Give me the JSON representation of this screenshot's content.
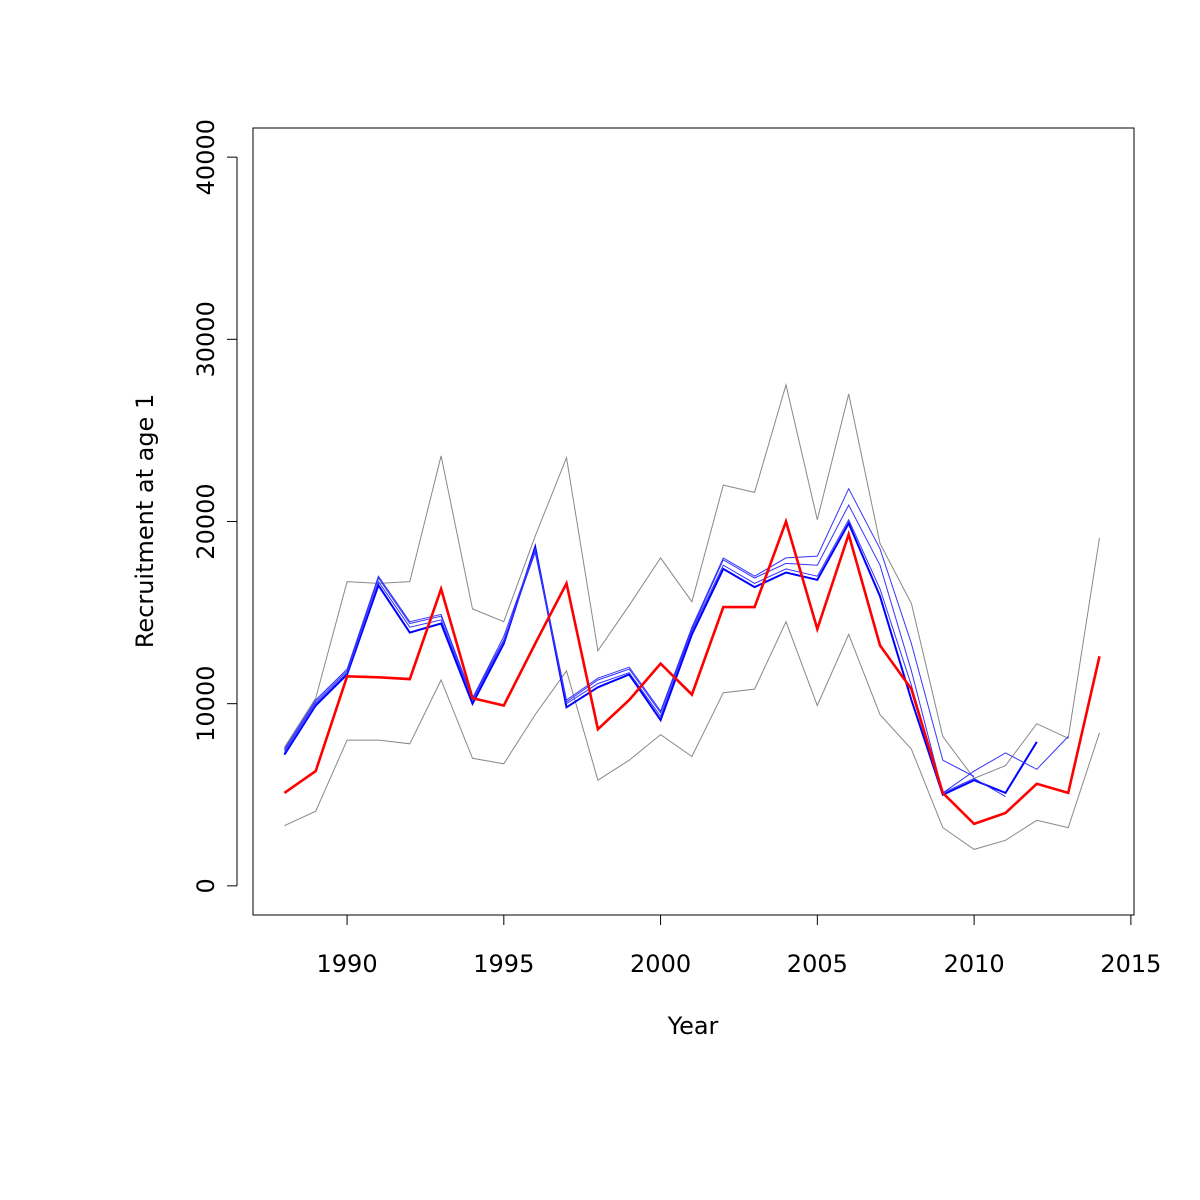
{
  "chart_data": {
    "type": "line",
    "title": "",
    "xlabel": "Year",
    "ylabel": "Recruitment at age 1",
    "xlim": [
      1987,
      2015.1
    ],
    "ylim": [
      -1600,
      41600
    ],
    "x_ticks": [
      1990,
      1995,
      2000,
      2005,
      2010,
      2015
    ],
    "y_ticks": [
      0,
      10000,
      20000,
      30000,
      40000
    ],
    "x_tick_labels": [
      "1990",
      "1995",
      "2000",
      "2005",
      "2010",
      "2015"
    ],
    "y_tick_labels": [
      "0",
      "10000",
      "20000",
      "30000",
      "40000"
    ],
    "grid": false,
    "legend": "none",
    "series": [
      {
        "role": "upper-bound",
        "color": "#888888",
        "width": 1,
        "x": [
          1988,
          1989,
          1990,
          1991,
          1992,
          1993,
          1994,
          1995,
          1996,
          1997,
          1998,
          1999,
          2000,
          2001,
          2002,
          2003,
          2004,
          2005,
          2006,
          2007,
          2008,
          2009,
          2010,
          2011,
          2012,
          2013,
          2014
        ],
        "values": [
          7600,
          10300,
          16700,
          16600,
          16700,
          23600,
          15200,
          14500,
          19200,
          23500,
          12900,
          15400,
          18000,
          15600,
          22000,
          21600,
          27500,
          20100,
          27000,
          18800,
          15500,
          8200,
          5900,
          6600,
          8900,
          8100,
          19100
        ]
      },
      {
        "role": "lower-bound",
        "color": "#888888",
        "width": 1,
        "x": [
          1988,
          1989,
          1990,
          1991,
          1992,
          1993,
          1994,
          1995,
          1996,
          1997,
          1998,
          1999,
          2000,
          2001,
          2002,
          2003,
          2004,
          2005,
          2006,
          2007,
          2008,
          2009,
          2010,
          2011,
          2012,
          2013,
          2014
        ],
        "values": [
          3300,
          4100,
          8000,
          8000,
          7800,
          11300,
          7000,
          6700,
          9400,
          11800,
          5800,
          6900,
          8300,
          7100,
          10600,
          10800,
          14500,
          9900,
          13800,
          9400,
          7500,
          3200,
          2000,
          2500,
          3600,
          3200,
          8400
        ]
      },
      {
        "role": "estimate",
        "color": "#0000ff",
        "width": 2,
        "x": [
          1988,
          1989,
          1990,
          1991,
          1992,
          1993,
          1994,
          1995,
          1996,
          1997,
          1998,
          1999,
          2000,
          2001,
          2002,
          2003,
          2004,
          2005,
          2006,
          2007,
          2008,
          2009,
          2010,
          2011,
          2012
        ],
        "values": [
          7200,
          9900,
          11600,
          16500,
          13900,
          14400,
          10000,
          13300,
          18600,
          9800,
          10900,
          11600,
          9100,
          13800,
          17400,
          16400,
          17200,
          16800,
          19900,
          15900,
          10200,
          5000,
          5800,
          5100,
          7900
        ]
      },
      {
        "role": "retrospective",
        "color": "#3333ff",
        "width": 1,
        "x": [
          1988,
          1989,
          1990,
          1991,
          1992,
          1993,
          1994,
          1995,
          1996,
          1997,
          1998,
          1999,
          2000,
          2001,
          2002,
          2003,
          2004,
          2005,
          2006,
          2007,
          2008,
          2009,
          2010,
          2011,
          2012,
          2013
        ],
        "values": [
          7400,
          10100,
          11800,
          16900,
          14400,
          14800,
          10300,
          13500,
          18300,
          10100,
          11300,
          11900,
          9500,
          14100,
          17900,
          16900,
          17700,
          17600,
          20900,
          17600,
          11800,
          5100,
          6300,
          7300,
          6400,
          8200
        ]
      },
      {
        "role": "retrospective",
        "color": "#3333ff",
        "width": 1,
        "x": [
          1988,
          1989,
          1990,
          1991,
          1992,
          1993,
          1994,
          1995,
          1996,
          1997,
          1998,
          1999,
          2000,
          2001,
          2002,
          2003,
          2004,
          2005,
          2006,
          2007,
          2008,
          2009,
          2010,
          2011
        ],
        "values": [
          7300,
          10000,
          11700,
          16700,
          14200,
          14600,
          10200,
          13400,
          18400,
          10000,
          11100,
          11700,
          9300,
          14000,
          17600,
          16600,
          17400,
          17000,
          20100,
          16300,
          11000,
          5100,
          5900,
          4900
        ]
      },
      {
        "role": "retrospective",
        "color": "#3333ff",
        "width": 1,
        "x": [
          1988,
          1989,
          1990,
          1991,
          1992,
          1993,
          1994,
          1995,
          1996,
          1997,
          1998,
          1999,
          2000,
          2001,
          2002,
          2003,
          2004,
          2005,
          2006,
          2007,
          2008,
          2009,
          2010
        ],
        "values": [
          7500,
          10200,
          11900,
          17000,
          14500,
          14900,
          10300,
          13700,
          18500,
          10200,
          11400,
          12000,
          9600,
          14200,
          18000,
          17000,
          18000,
          18100,
          21800,
          18500,
          13300,
          6900,
          6000
        ]
      },
      {
        "role": "observed",
        "color": "#ff0000",
        "width": 2.6,
        "x": [
          1988,
          1989,
          1990,
          1991,
          1992,
          1993,
          1994,
          1995,
          1996,
          1997,
          1998,
          1999,
          2000,
          2001,
          2002,
          2003,
          2004,
          2005,
          2006,
          2007,
          2008,
          2009,
          2010,
          2011,
          2012,
          2013,
          2014
        ],
        "values": [
          5100,
          6300,
          11500,
          11450,
          11350,
          16300,
          10300,
          9900,
          13300,
          16600,
          8600,
          10200,
          12200,
          10500,
          15300,
          15300,
          20000,
          14100,
          19300,
          13200,
          10800,
          5100,
          3400,
          4000,
          5600,
          5100,
          12600
        ]
      }
    ]
  }
}
